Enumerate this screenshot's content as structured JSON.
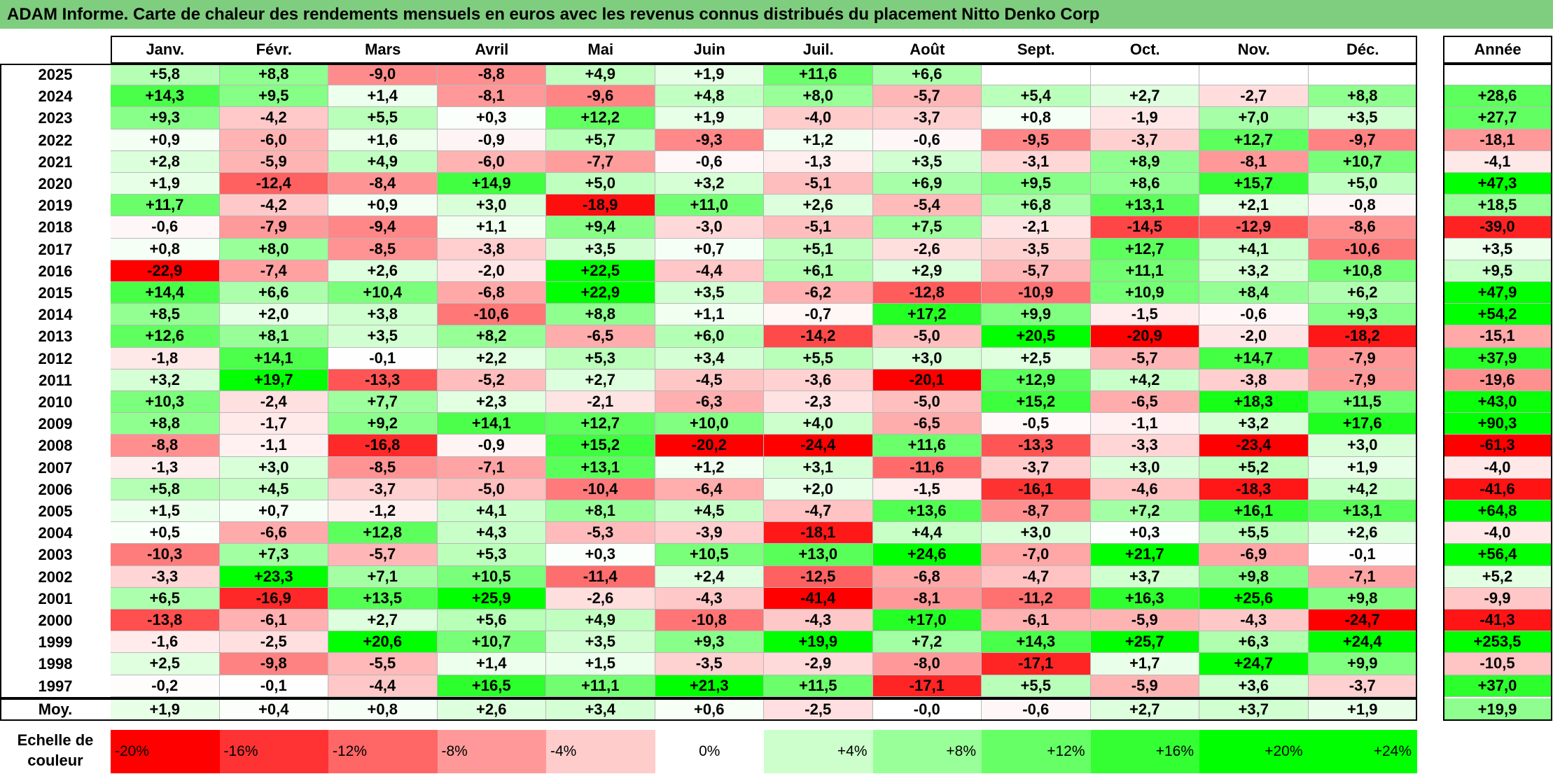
{
  "title": "ADAM Informe. Carte de chaleur des rendements mensuels en euros avec les revenus connus distribués du placement Nitto Denko Corp",
  "chart_data": {
    "type": "heatmap",
    "title": "ADAM Informe. Carte de chaleur des rendements mensuels en euros avec les revenus connus distribués du placement Nitto Denko Corp",
    "columns": [
      "Janv.",
      "Févr.",
      "Mars",
      "Avril",
      "Mai",
      "Juin",
      "Juil.",
      "Août",
      "Sept.",
      "Oct.",
      "Nov.",
      "Déc."
    ],
    "annual_header": "Année",
    "average_label": "Moy.",
    "rows": [
      {
        "year": "2025",
        "values": [
          "+5,8",
          "+8,8",
          "-9,0",
          "-8,8",
          "+4,9",
          "+1,9",
          "+11,6",
          "+6,6",
          "",
          "",
          "",
          ""
        ],
        "annual": ""
      },
      {
        "year": "2024",
        "values": [
          "+14,3",
          "+9,5",
          "+1,4",
          "-8,1",
          "-9,6",
          "+4,8",
          "+8,0",
          "-5,7",
          "+5,4",
          "+2,7",
          "-2,7",
          "+8,8"
        ],
        "annual": "+28,6"
      },
      {
        "year": "2023",
        "values": [
          "+9,3",
          "-4,2",
          "+5,5",
          "+0,3",
          "+12,2",
          "+1,9",
          "-4,0",
          "-3,7",
          "+0,8",
          "-1,9",
          "+7,0",
          "+3,5"
        ],
        "annual": "+27,7"
      },
      {
        "year": "2022",
        "values": [
          "+0,9",
          "-6,0",
          "+1,6",
          "-0,9",
          "+5,7",
          "-9,3",
          "+1,2",
          "-0,6",
          "-9,5",
          "-3,7",
          "+12,7",
          "-9,7"
        ],
        "annual": "-18,1"
      },
      {
        "year": "2021",
        "values": [
          "+2,8",
          "-5,9",
          "+4,9",
          "-6,0",
          "-7,7",
          "-0,6",
          "-1,3",
          "+3,5",
          "-3,1",
          "+8,9",
          "-8,1",
          "+10,7"
        ],
        "annual": "-4,1"
      },
      {
        "year": "2020",
        "values": [
          "+1,9",
          "-12,4",
          "-8,4",
          "+14,9",
          "+5,0",
          "+3,2",
          "-5,1",
          "+6,9",
          "+9,5",
          "+8,6",
          "+15,7",
          "+5,0"
        ],
        "annual": "+47,3"
      },
      {
        "year": "2019",
        "values": [
          "+11,7",
          "-4,2",
          "+0,9",
          "+3,0",
          "-18,9",
          "+11,0",
          "+2,6",
          "-5,4",
          "+6,8",
          "+13,1",
          "+2,1",
          "-0,8"
        ],
        "annual": "+18,5"
      },
      {
        "year": "2018",
        "values": [
          "-0,6",
          "-7,9",
          "-9,4",
          "+1,1",
          "+9,4",
          "-3,0",
          "-5,1",
          "+7,5",
          "-2,1",
          "-14,5",
          "-12,9",
          "-8,6"
        ],
        "annual": "-39,0"
      },
      {
        "year": "2017",
        "values": [
          "+0,8",
          "+8,0",
          "-8,5",
          "-3,8",
          "+3,5",
          "+0,7",
          "+5,1",
          "-2,6",
          "-3,5",
          "+12,7",
          "+4,1",
          "-10,6"
        ],
        "annual": "+3,5"
      },
      {
        "year": "2016",
        "values": [
          "-22,9",
          "-7,4",
          "+2,6",
          "-2,0",
          "+22,5",
          "-4,4",
          "+6,1",
          "+2,9",
          "-5,7",
          "+11,1",
          "+3,2",
          "+10,8"
        ],
        "annual": "+9,5"
      },
      {
        "year": "2015",
        "values": [
          "+14,4",
          "+6,6",
          "+10,4",
          "-6,8",
          "+22,9",
          "+3,5",
          "-6,2",
          "-12,8",
          "-10,9",
          "+10,9",
          "+8,4",
          "+6,2"
        ],
        "annual": "+47,9"
      },
      {
        "year": "2014",
        "values": [
          "+8,5",
          "+2,0",
          "+3,8",
          "-10,6",
          "+8,8",
          "+1,1",
          "-0,7",
          "+17,2",
          "+9,9",
          "-1,5",
          "-0,6",
          "+9,3"
        ],
        "annual": "+54,2"
      },
      {
        "year": "2013",
        "values": [
          "+12,6",
          "+8,1",
          "+3,5",
          "+8,2",
          "-6,5",
          "+6,0",
          "-14,2",
          "-5,0",
          "+20,5",
          "-20,9",
          "-2,0",
          "-18,2"
        ],
        "annual": "-15,1"
      },
      {
        "year": "2012",
        "values": [
          "-1,8",
          "+14,1",
          "-0,1",
          "+2,2",
          "+5,3",
          "+3,4",
          "+5,5",
          "+3,0",
          "+2,5",
          "-5,7",
          "+14,7",
          "-7,9"
        ],
        "annual": "+37,9"
      },
      {
        "year": "2011",
        "values": [
          "+3,2",
          "+19,7",
          "-13,3",
          "-5,2",
          "+2,7",
          "-4,5",
          "-3,6",
          "-20,1",
          "+12,9",
          "+4,2",
          "-3,8",
          "-7,9"
        ],
        "annual": "-19,6"
      },
      {
        "year": "2010",
        "values": [
          "+10,3",
          "-2,4",
          "+7,7",
          "+2,3",
          "-2,1",
          "-6,3",
          "-2,3",
          "-5,0",
          "+15,2",
          "-6,5",
          "+18,3",
          "+11,5"
        ],
        "annual": "+43,0"
      },
      {
        "year": "2009",
        "values": [
          "+8,8",
          "-1,7",
          "+9,2",
          "+14,1",
          "+12,7",
          "+10,0",
          "+4,0",
          "-6,5",
          "-0,5",
          "-1,1",
          "+3,2",
          "+17,6"
        ],
        "annual": "+90,3"
      },
      {
        "year": "2008",
        "values": [
          "-8,8",
          "-1,1",
          "-16,8",
          "-0,9",
          "+15,2",
          "-20,2",
          "-24,4",
          "+11,6",
          "-13,3",
          "-3,3",
          "-23,4",
          "+3,0"
        ],
        "annual": "-61,3"
      },
      {
        "year": "2007",
        "values": [
          "-1,3",
          "+3,0",
          "-8,5",
          "-7,1",
          "+13,1",
          "+1,2",
          "+3,1",
          "-11,6",
          "-3,7",
          "+3,0",
          "+5,2",
          "+1,9"
        ],
        "annual": "-4,0"
      },
      {
        "year": "2006",
        "values": [
          "+5,8",
          "+4,5",
          "-3,7",
          "-5,0",
          "-10,4",
          "-6,4",
          "+2,0",
          "-1,5",
          "-16,1",
          "-4,6",
          "-18,3",
          "+4,2"
        ],
        "annual": "-41,6"
      },
      {
        "year": "2005",
        "values": [
          "+1,5",
          "+0,7",
          "-1,2",
          "+4,1",
          "+8,1",
          "+4,5",
          "-4,7",
          "+13,6",
          "-8,7",
          "+7,2",
          "+16,1",
          "+13,1"
        ],
        "annual": "+64,8"
      },
      {
        "year": "2004",
        "values": [
          "+0,5",
          "-6,6",
          "+12,8",
          "+4,3",
          "-5,3",
          "-3,9",
          "-18,1",
          "+4,4",
          "+3,0",
          "+0,3",
          "+5,5",
          "+2,6"
        ],
        "annual": "-4,0"
      },
      {
        "year": "2003",
        "values": [
          "-10,3",
          "+7,3",
          "-5,7",
          "+5,3",
          "+0,3",
          "+10,5",
          "+13,0",
          "+24,6",
          "-7,0",
          "+21,7",
          "-6,9",
          "-0,1"
        ],
        "annual": "+56,4"
      },
      {
        "year": "2002",
        "values": [
          "-3,3",
          "+23,3",
          "+7,1",
          "+10,5",
          "-11,4",
          "+2,4",
          "-12,5",
          "-6,8",
          "-4,7",
          "+3,7",
          "+9,8",
          "-7,1"
        ],
        "annual": "+5,2"
      },
      {
        "year": "2001",
        "values": [
          "+6,5",
          "-16,9",
          "+13,5",
          "+25,9",
          "-2,6",
          "-4,3",
          "-41,4",
          "-8,1",
          "-11,2",
          "+16,3",
          "+25,6",
          "+9,8"
        ],
        "annual": "-9,9"
      },
      {
        "year": "2000",
        "values": [
          "-13,8",
          "-6,1",
          "+2,7",
          "+5,6",
          "+4,9",
          "-10,8",
          "-4,3",
          "+17,0",
          "-6,1",
          "-5,9",
          "-4,3",
          "-24,7"
        ],
        "annual": "-41,3"
      },
      {
        "year": "1999",
        "values": [
          "-1,6",
          "-2,5",
          "+20,6",
          "+10,7",
          "+3,5",
          "+9,3",
          "+19,9",
          "+7,2",
          "+14,3",
          "+25,7",
          "+6,3",
          "+24,4"
        ],
        "annual": "+253,5"
      },
      {
        "year": "1998",
        "values": [
          "+2,5",
          "-9,8",
          "-5,5",
          "+1,4",
          "+1,5",
          "-3,5",
          "-2,9",
          "-8,0",
          "-17,1",
          "+1,7",
          "+24,7",
          "+9,9"
        ],
        "annual": "-10,5"
      },
      {
        "year": "1997",
        "values": [
          "-0,2",
          "-0,1",
          "-4,4",
          "+16,5",
          "+11,1",
          "+21,3",
          "+11,5",
          "-17,1",
          "+5,5",
          "-5,9",
          "+3,6",
          "-3,7"
        ],
        "annual": "+37,0"
      }
    ],
    "average": {
      "values": [
        "+1,9",
        "+0,4",
        "+0,8",
        "+2,6",
        "+3,4",
        "+0,6",
        "-2,5",
        "-0,0",
        "-0,6",
        "+2,7",
        "+3,7",
        "+1,9"
      ],
      "annual": "+19,9"
    },
    "color_scale": {
      "label": "Echelle de couleur",
      "stops": [
        "-20%",
        "-16%",
        "-12%",
        "-8%",
        "-4%",
        "0%",
        "+4%",
        "+8%",
        "+12%",
        "+16%",
        "+20%",
        "+24%"
      ],
      "stop_values": [
        -20,
        -16,
        -12,
        -8,
        -4,
        0,
        4,
        8,
        12,
        16,
        20,
        24
      ],
      "negative_color": "#ff0000",
      "neutral_color": "#ffffff",
      "positive_color": "#00ff00"
    }
  }
}
